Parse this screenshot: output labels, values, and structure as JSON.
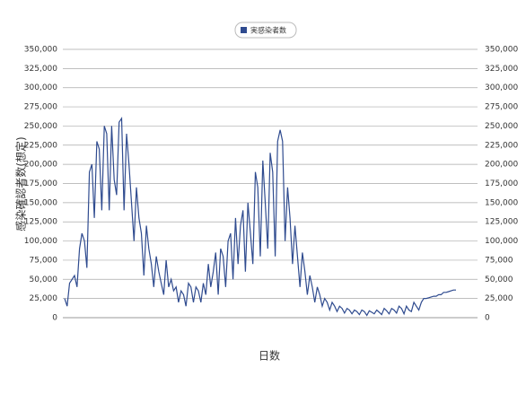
{
  "chart_data": {
    "type": "line",
    "series": [
      {
        "name": "実感染者数",
        "color": "#2f4b8f",
        "values": [
          25000,
          15000,
          45000,
          50000,
          55000,
          40000,
          90000,
          110000,
          100000,
          65000,
          190000,
          200000,
          130000,
          230000,
          220000,
          140000,
          250000,
          240000,
          140000,
          250000,
          180000,
          160000,
          255000,
          260000,
          140000,
          240000,
          200000,
          150000,
          100000,
          170000,
          130000,
          110000,
          55000,
          120000,
          90000,
          70000,
          40000,
          80000,
          60000,
          45000,
          30000,
          75000,
          40000,
          50000,
          35000,
          40000,
          20000,
          35000,
          30000,
          15000,
          45000,
          40000,
          20000,
          40000,
          35000,
          20000,
          45000,
          30000,
          70000,
          40000,
          60000,
          85000,
          30000,
          90000,
          80000,
          40000,
          100000,
          110000,
          50000,
          130000,
          70000,
          120000,
          140000,
          60000,
          150000,
          110000,
          70000,
          190000,
          170000,
          80000,
          205000,
          150000,
          90000,
          215000,
          190000,
          80000,
          230000,
          245000,
          230000,
          100000,
          170000,
          130000,
          70000,
          120000,
          80000,
          40000,
          85000,
          60000,
          30000,
          55000,
          40000,
          20000,
          40000,
          30000,
          15000,
          25000,
          20000,
          10000,
          20000,
          15000,
          8000,
          15000,
          12000,
          6000,
          12000,
          10000,
          5000,
          10000,
          8000,
          4000,
          10000,
          8000,
          3000,
          9000,
          7000,
          5000,
          10000,
          7000,
          4000,
          12000,
          9000,
          5000,
          12000,
          10000,
          6000,
          15000,
          12000,
          5000,
          15000,
          10000,
          8000,
          20000,
          15000,
          10000,
          20000,
          25000,
          25000,
          26000,
          27000,
          28000,
          28000,
          30000,
          30000,
          33000,
          33000,
          34000,
          35000,
          36000,
          36000
        ]
      }
    ],
    "ylabel": "感染確認者数(想定)",
    "xlabel": "日数",
    "ylim": [
      0,
      350000
    ],
    "yticks": [
      0,
      {
        "value": 25000,
        "label": "25,000"
      },
      {
        "value": 50000,
        "label": "50,000"
      },
      {
        "value": 75000,
        "label": "75,000"
      },
      {
        "value": 100000,
        "label": "100,000"
      },
      {
        "value": 125000,
        "label": "125,000"
      },
      {
        "value": 150000,
        "label": "150,000"
      },
      {
        "value": 175000,
        "label": "175,000"
      },
      {
        "value": 200000,
        "label": "200,000"
      },
      {
        "value": 225000,
        "label": "225,000"
      },
      {
        "value": 250000,
        "label": "250,000"
      },
      {
        "value": 275000,
        "label": "275,000"
      },
      {
        "value": 300000,
        "label": "300,000"
      },
      {
        "value": 325000,
        "label": "325,000"
      },
      {
        "value": 350000,
        "label": "350,000"
      }
    ],
    "grid": true,
    "legend": "top",
    "secondary_axis_mirror": true
  }
}
